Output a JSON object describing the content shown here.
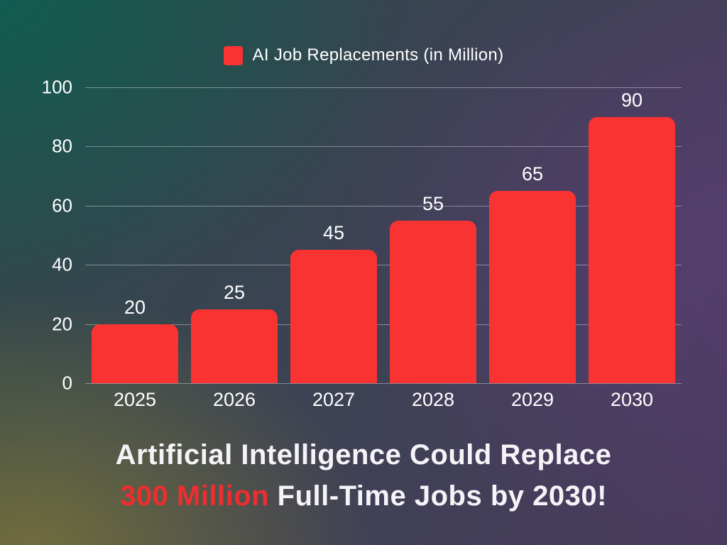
{
  "chart_data": {
    "type": "bar",
    "legend": "AI Job Replacements (in Million)",
    "legend_position": "top",
    "categories": [
      "2025",
      "2026",
      "2027",
      "2028",
      "2029",
      "2030"
    ],
    "values": [
      20,
      25,
      45,
      55,
      65,
      90
    ],
    "ylim": [
      0,
      100
    ],
    "yticks": [
      0,
      20,
      40,
      60,
      80,
      100
    ],
    "grid": true,
    "bar_color": "#f93232",
    "xlabel": "",
    "ylabel": ""
  },
  "caption": {
    "line1": "Artificial Intelligence Could Replace",
    "line2_highlight": "300 Million",
    "line2_rest": " Full-Time Jobs by 2030!",
    "highlight_color": "#ee2d30"
  },
  "colors": {
    "text": "#ffffff",
    "gridline": "rgba(255,255,255,0.38)"
  }
}
